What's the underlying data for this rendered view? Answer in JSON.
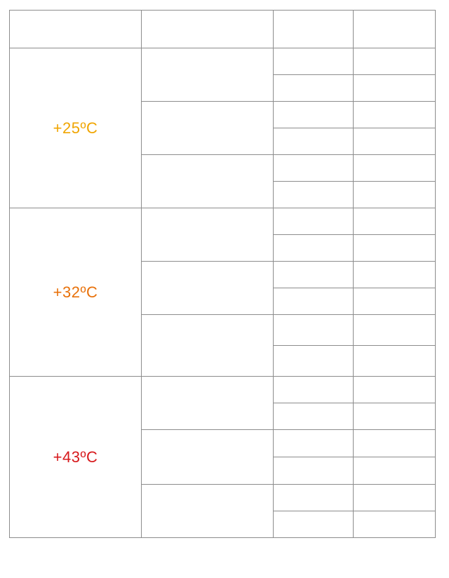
{
  "table": {
    "header": [
      "",
      "",
      "",
      ""
    ],
    "groups": [
      {
        "label": "+25ºC",
        "color": "#f0a500"
      },
      {
        "label": "+32ºC",
        "color": "#e8710a"
      },
      {
        "label": "+43ºC",
        "color": "#d7191c"
      }
    ]
  }
}
